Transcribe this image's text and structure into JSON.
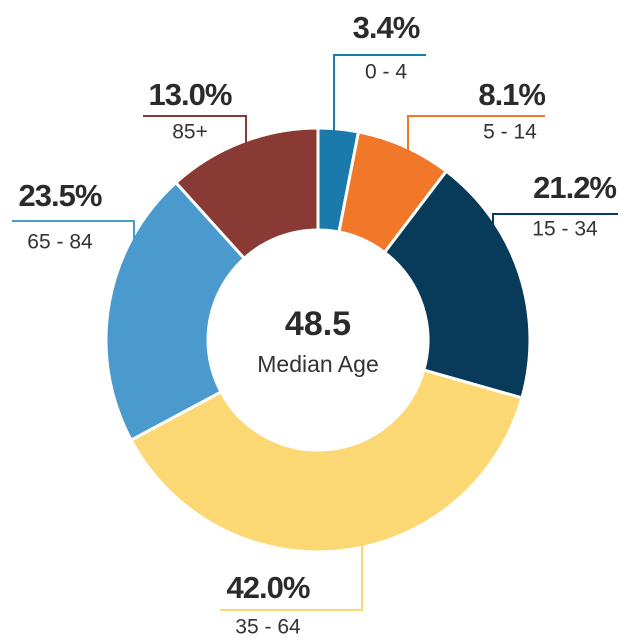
{
  "chart_data": {
    "type": "pie",
    "donut": true,
    "categories": [
      "0 - 4",
      "5 - 14",
      "15 - 34",
      "35 - 64",
      "65 - 84",
      "85+"
    ],
    "values": [
      3.4,
      8.1,
      21.2,
      42.0,
      23.5,
      13.0
    ],
    "value_labels": [
      "3.4%",
      "8.1%",
      "21.2%",
      "42.0%",
      "23.5%",
      "13.0%"
    ],
    "colors": [
      "#1a7aab",
      "#f07828",
      "#083a5a",
      "#fcd875",
      "#4a9acd",
      "#8a3a35"
    ],
    "center_value": 48.5,
    "center_text": "Median Age"
  }
}
